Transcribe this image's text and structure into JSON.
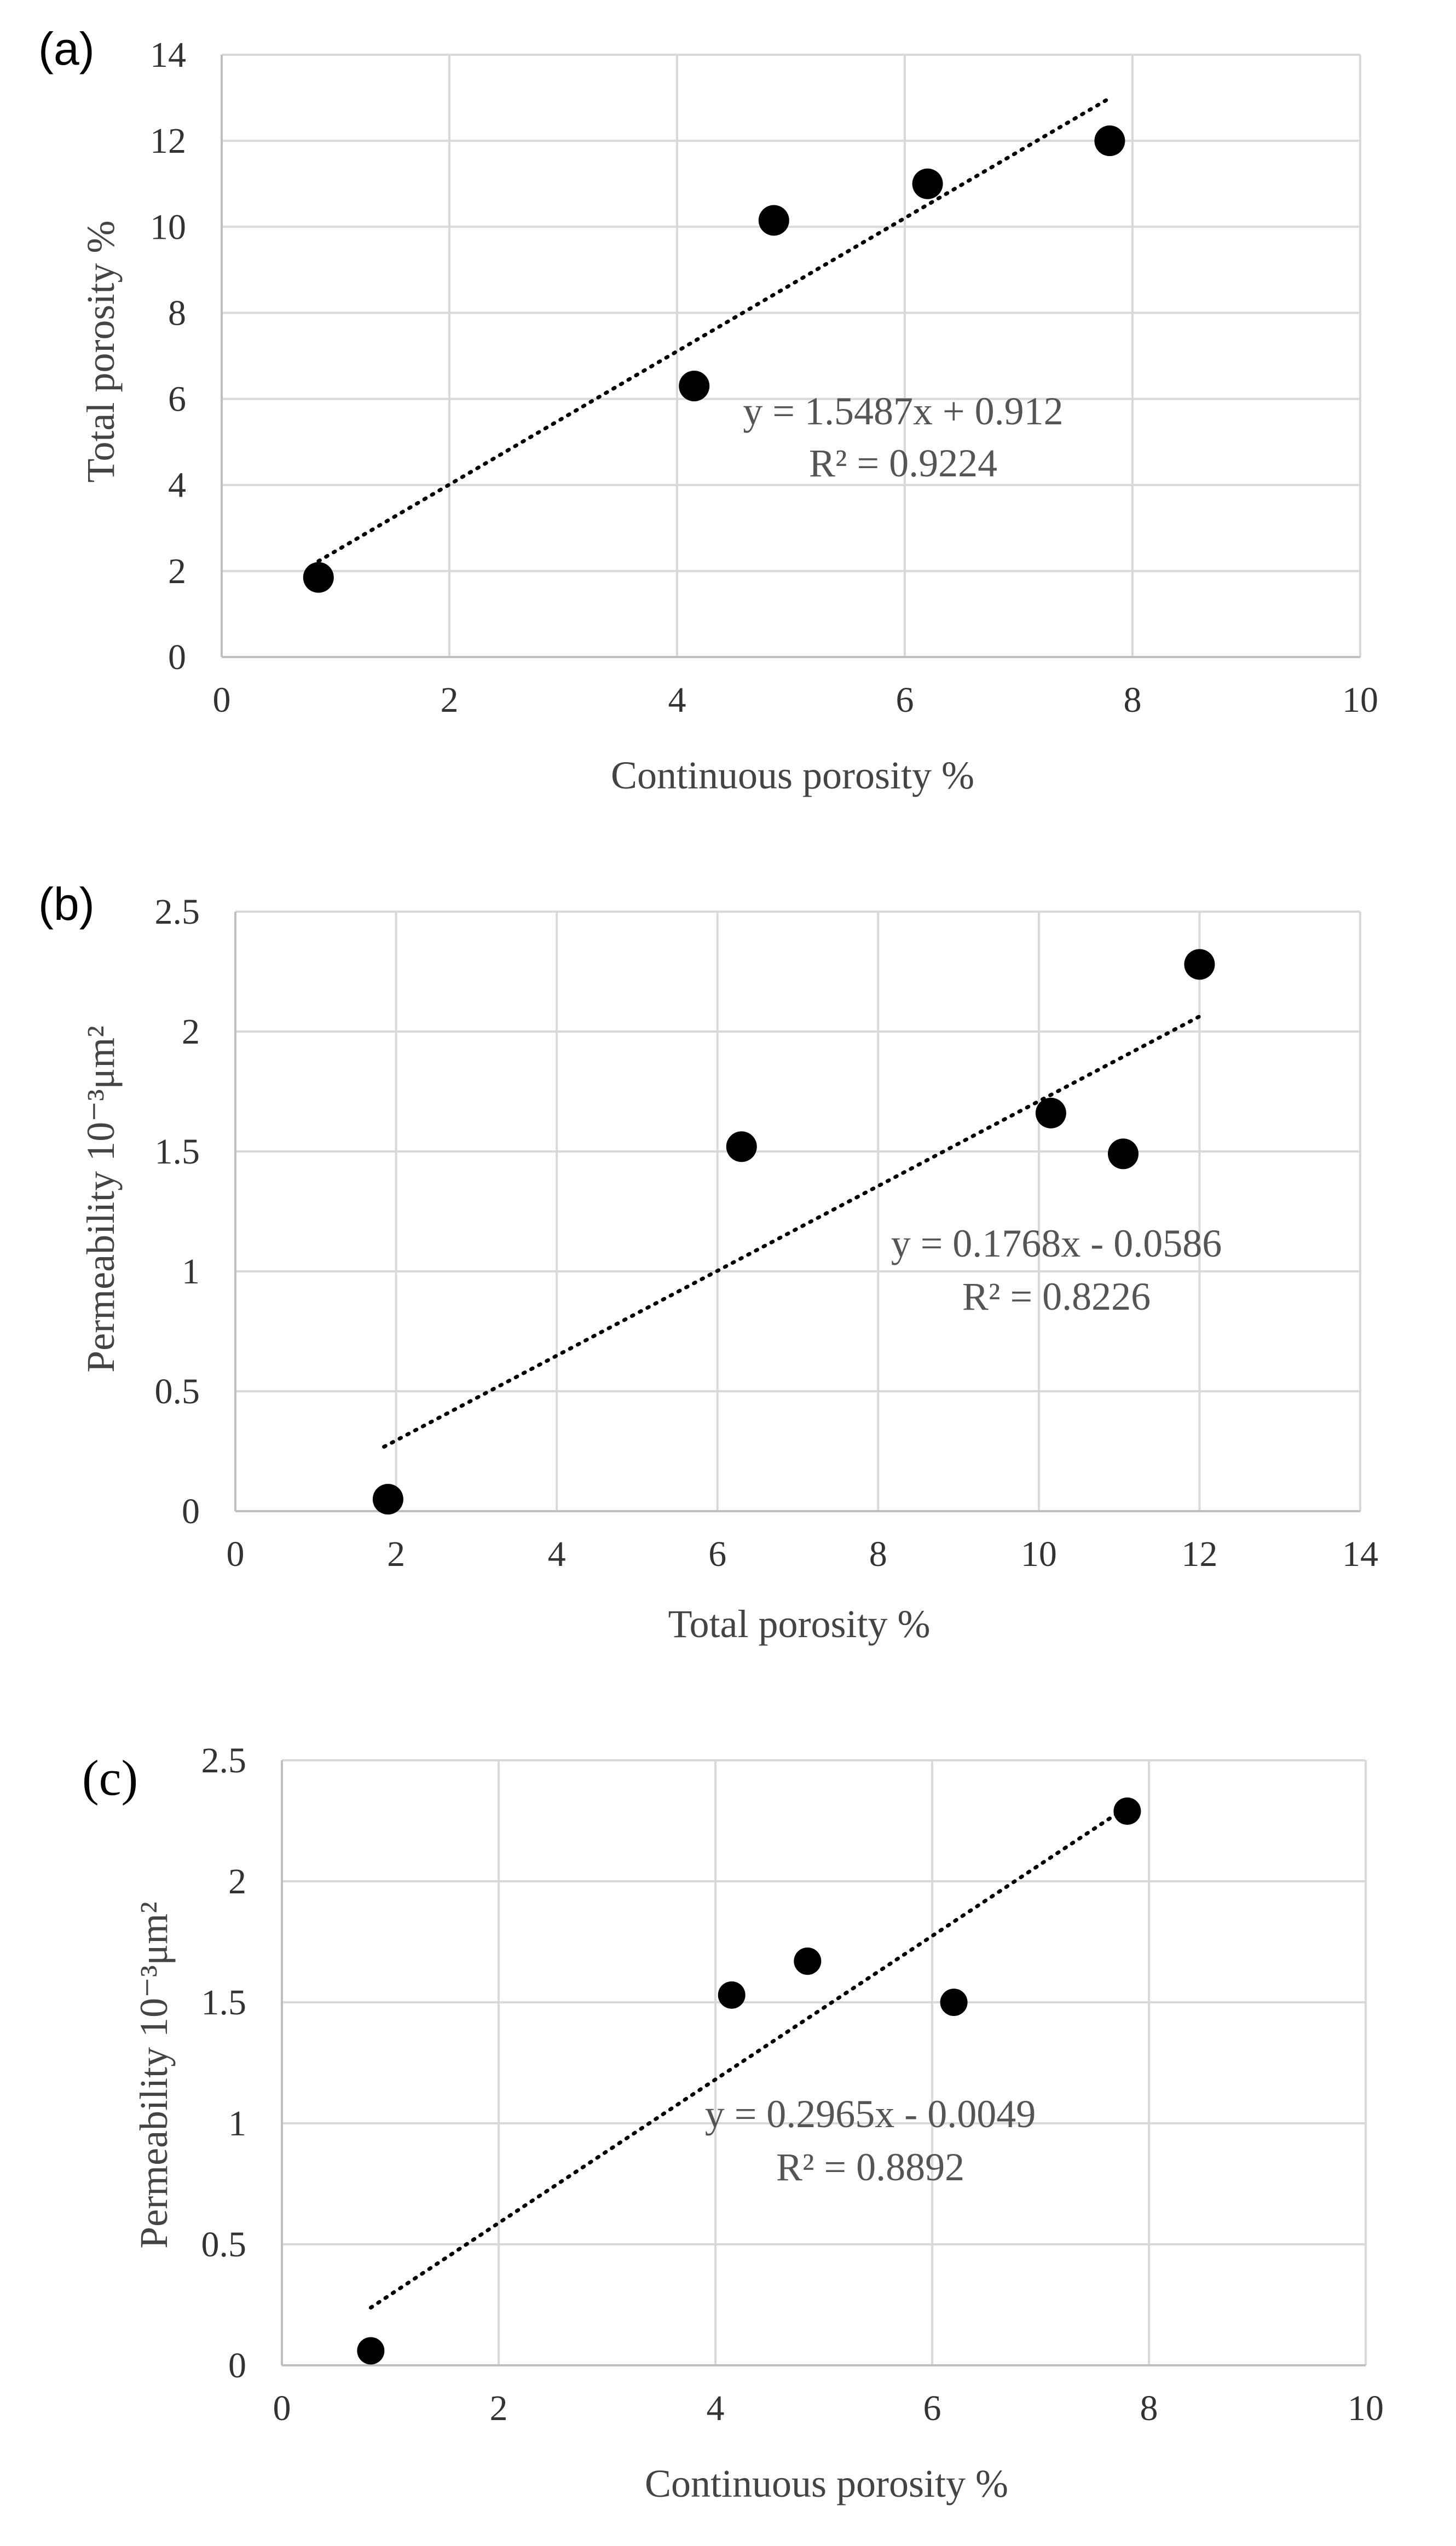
{
  "chart_data": [
    {
      "type": "scatter",
      "panel_label": "(a)",
      "xlabel": "Continuous porosity %",
      "ylabel": "Total porosity %",
      "xlim": [
        0,
        10
      ],
      "ylim": [
        0,
        14
      ],
      "xticks": [
        0,
        2,
        4,
        6,
        8,
        10
      ],
      "yticks": [
        0,
        2,
        4,
        6,
        8,
        10,
        12,
        14
      ],
      "grid": true,
      "points": [
        {
          "x": 0.85,
          "y": 1.85
        },
        {
          "x": 4.15,
          "y": 6.3
        },
        {
          "x": 4.85,
          "y": 10.15
        },
        {
          "x": 6.2,
          "y": 11.0
        },
        {
          "x": 7.8,
          "y": 12.0
        }
      ],
      "trendline": {
        "slope": 1.5487,
        "intercept": 0.912,
        "x_range": [
          0.85,
          7.8
        ]
      },
      "equation": "y = 1.5487x + 0.912",
      "r_squared": "R² = 0.9224"
    },
    {
      "type": "scatter",
      "panel_label": "(b)",
      "xlabel": "Total porosity %",
      "ylabel": "Permeability 10⁻³μm²",
      "xlim": [
        0,
        14
      ],
      "ylim": [
        0,
        2.5
      ],
      "xticks": [
        0,
        2,
        4,
        6,
        8,
        10,
        12,
        14
      ],
      "yticks": [
        0,
        0.5,
        1,
        1.5,
        2,
        2.5
      ],
      "grid": true,
      "points": [
        {
          "x": 1.9,
          "y": 0.05
        },
        {
          "x": 6.3,
          "y": 1.52
        },
        {
          "x": 10.15,
          "y": 1.66
        },
        {
          "x": 11.05,
          "y": 1.49
        },
        {
          "x": 12.0,
          "y": 2.28
        }
      ],
      "trendline": {
        "slope": 0.1768,
        "intercept": -0.0586,
        "x_range": [
          1.85,
          12.0
        ]
      },
      "equation": "y = 0.1768x - 0.0586",
      "r_squared": "R² = 0.8226"
    },
    {
      "type": "scatter",
      "panel_label": "(c)",
      "xlabel": "Continuous  porosity %",
      "ylabel": "Permeability 10⁻³μm²",
      "xlim": [
        0,
        10
      ],
      "ylim": [
        0,
        2.5
      ],
      "xticks": [
        0,
        2,
        4,
        6,
        8,
        10
      ],
      "yticks": [
        0,
        0.5,
        1,
        1.5,
        2,
        2.5
      ],
      "grid": true,
      "points": [
        {
          "x": 0.82,
          "y": 0.06
        },
        {
          "x": 4.15,
          "y": 1.53
        },
        {
          "x": 4.85,
          "y": 1.67
        },
        {
          "x": 6.2,
          "y": 1.5
        },
        {
          "x": 7.8,
          "y": 2.29
        }
      ],
      "trendline": {
        "slope": 0.2965,
        "intercept": -0.0049,
        "x_range": [
          0.82,
          7.8
        ]
      },
      "equation": "y = 0.2965x - 0.0049",
      "r_squared": "R² = 0.8892"
    }
  ]
}
